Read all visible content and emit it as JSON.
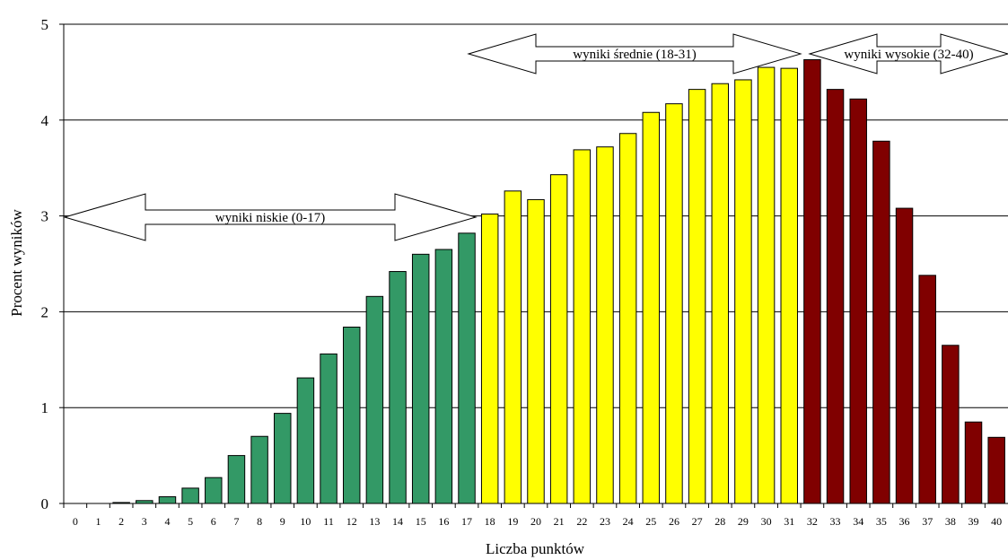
{
  "chart_data": {
    "type": "bar",
    "title": "",
    "xlabel": "Liczba punktów",
    "ylabel": "Procent wyników",
    "ylim": [
      0,
      5
    ],
    "yticks": [
      0,
      1,
      2,
      3,
      4,
      5
    ],
    "grid": true,
    "categories": [
      "0",
      "1",
      "2",
      "3",
      "4",
      "5",
      "6",
      "7",
      "8",
      "9",
      "10",
      "11",
      "12",
      "13",
      "14",
      "15",
      "16",
      "17",
      "18",
      "19",
      "20",
      "21",
      "22",
      "23",
      "24",
      "25",
      "26",
      "27",
      "28",
      "29",
      "30",
      "31",
      "32",
      "33",
      "34",
      "35",
      "36",
      "37",
      "38",
      "39",
      "40"
    ],
    "values": [
      0,
      0,
      0.01,
      0.03,
      0.07,
      0.16,
      0.27,
      0.5,
      0.7,
      0.94,
      1.31,
      1.56,
      1.84,
      2.16,
      2.42,
      2.6,
      2.65,
      2.82,
      3.02,
      3.26,
      3.17,
      3.43,
      3.69,
      3.72,
      3.86,
      4.08,
      4.17,
      4.32,
      4.38,
      4.42,
      4.55,
      4.54,
      4.63,
      4.32,
      4.22,
      3.78,
      3.08,
      2.38,
      1.65,
      0.85,
      0.69
    ],
    "groups": [
      {
        "label": "wyniki niskie (0-17)",
        "from": 0,
        "to": 17,
        "color": "#339966"
      },
      {
        "label": "wyniki średnie (18-31)",
        "from": 18,
        "to": 31,
        "color": "#ffff00"
      },
      {
        "label": "wyniki wysokie (32-40)",
        "from": 32,
        "to": 40,
        "color": "#800000"
      }
    ]
  }
}
